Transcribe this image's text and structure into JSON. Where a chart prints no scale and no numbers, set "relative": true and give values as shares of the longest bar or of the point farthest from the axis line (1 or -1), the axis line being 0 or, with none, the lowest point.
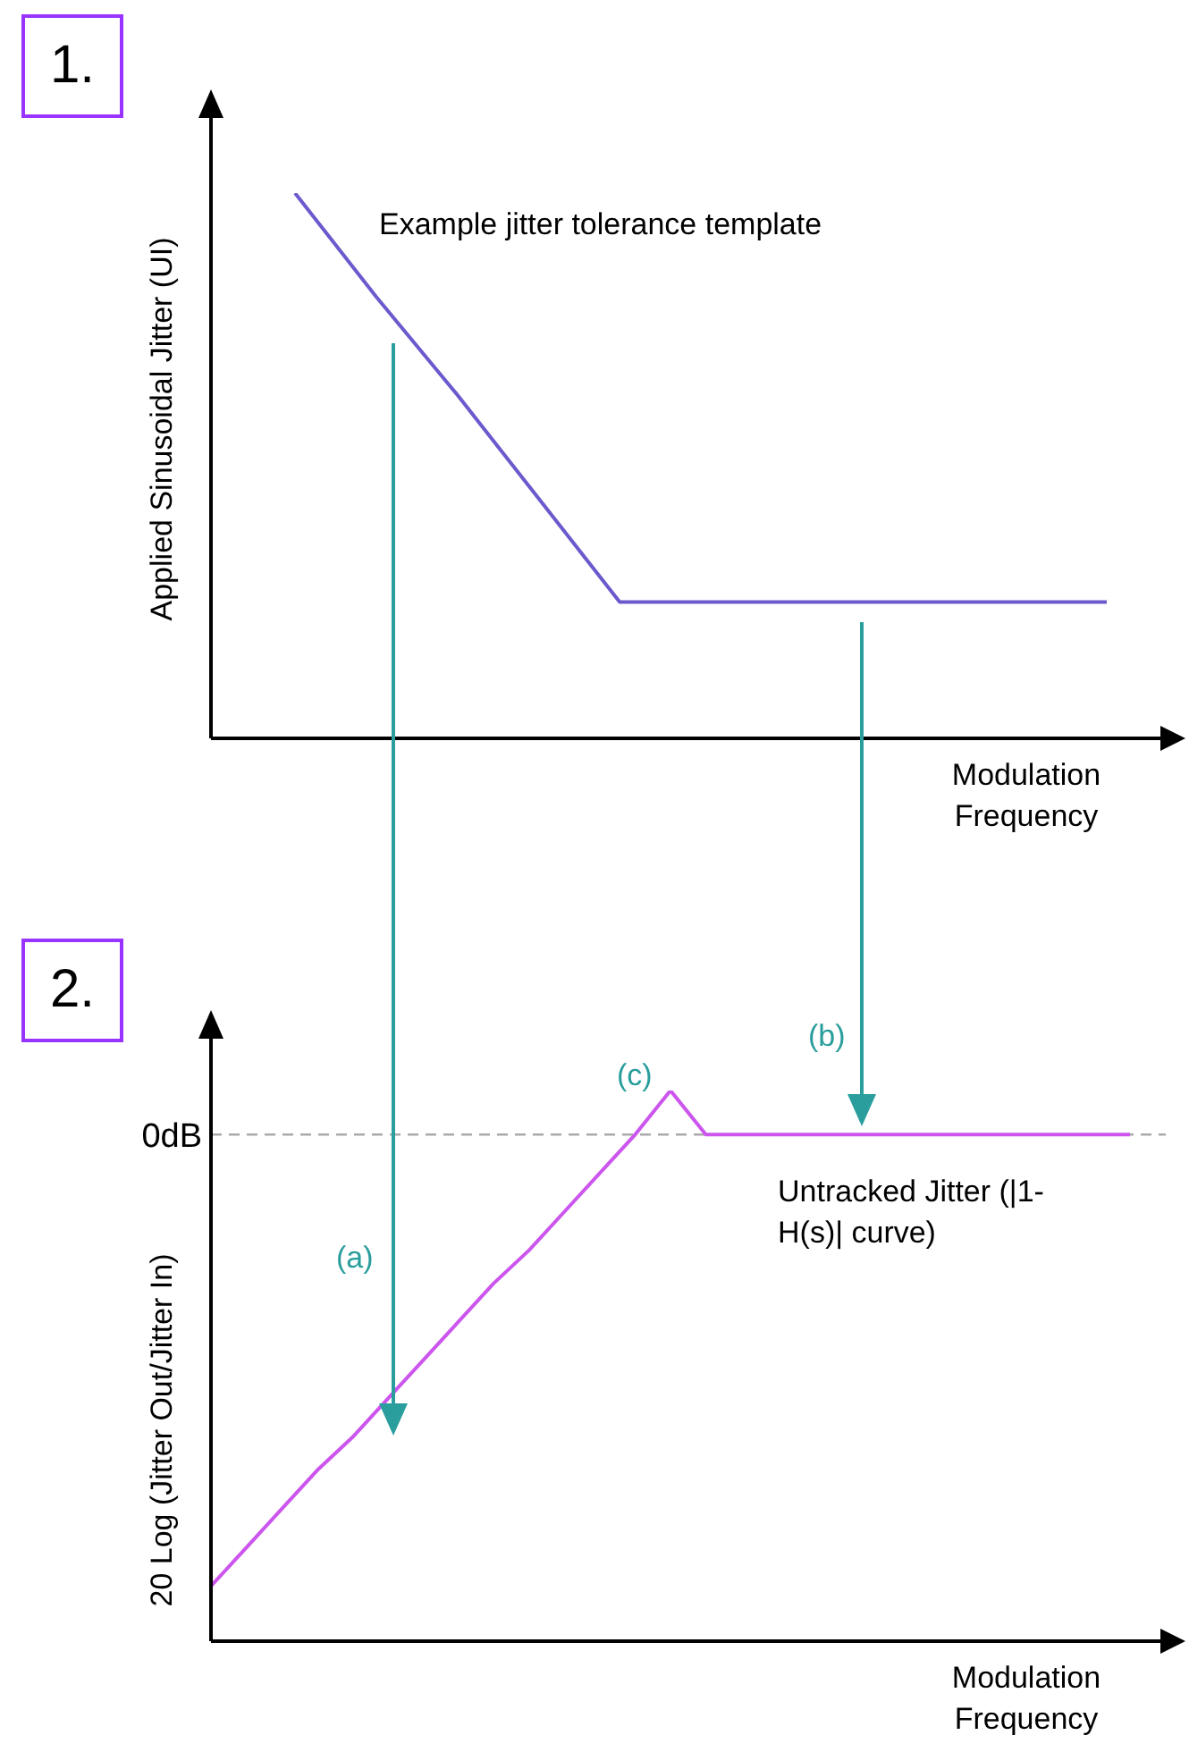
{
  "chart_data": [
    {
      "type": "line",
      "ylabel": "Applied Sinusoidal Jitter (UI)",
      "xlabel": "Modulation Frequency",
      "relative": true,
      "categories": [
        null,
        null,
        null,
        null,
        null,
        null,
        null,
        null,
        null,
        null,
        null
      ],
      "color": "#6a5acd",
      "values": [
        1,
        0.81,
        0.63,
        0.44,
        0.25,
        0.25,
        0.25,
        0.25,
        0.25,
        0.25,
        0.25
      ],
      "annotations": [
        "1.",
        "Example jitter tolerance template"
      ]
    },
    {
      "type": "line",
      "ylabel": "20 Log (Jitter Out/Jitter In)",
      "xlabel": "Modulation Frequency",
      "relative": true,
      "categories": [
        null,
        null,
        null,
        null,
        null,
        null,
        null,
        null,
        null,
        null,
        null,
        null,
        null,
        null,
        null,
        null,
        null,
        null,
        null,
        null,
        null,
        null,
        null,
        null,
        null,
        null,
        null
      ],
      "color": "#cc55ee",
      "values": [
        0.1,
        0.17,
        0.24,
        0.31,
        0.37,
        0.44,
        0.51,
        0.58,
        0.65,
        0.71,
        0.78,
        0.85,
        0.92,
        1,
        0.92,
        0.92,
        0.92,
        0.92,
        0.92,
        0.92,
        0.92,
        0.92,
        0.92,
        0.92,
        0.92,
        0.92,
        0.92
      ],
      "ref_lines": [
        {
          "axis": "y",
          "value": 0.92,
          "label": "0dB",
          "color": "#aaaaaa",
          "line_style": "dashed"
        }
      ],
      "annotations": [
        "2.",
        "(a)",
        "(b)",
        "(c)",
        "Untracked Jitter (|1-H(s)| curve)"
      ]
    }
  ]
}
